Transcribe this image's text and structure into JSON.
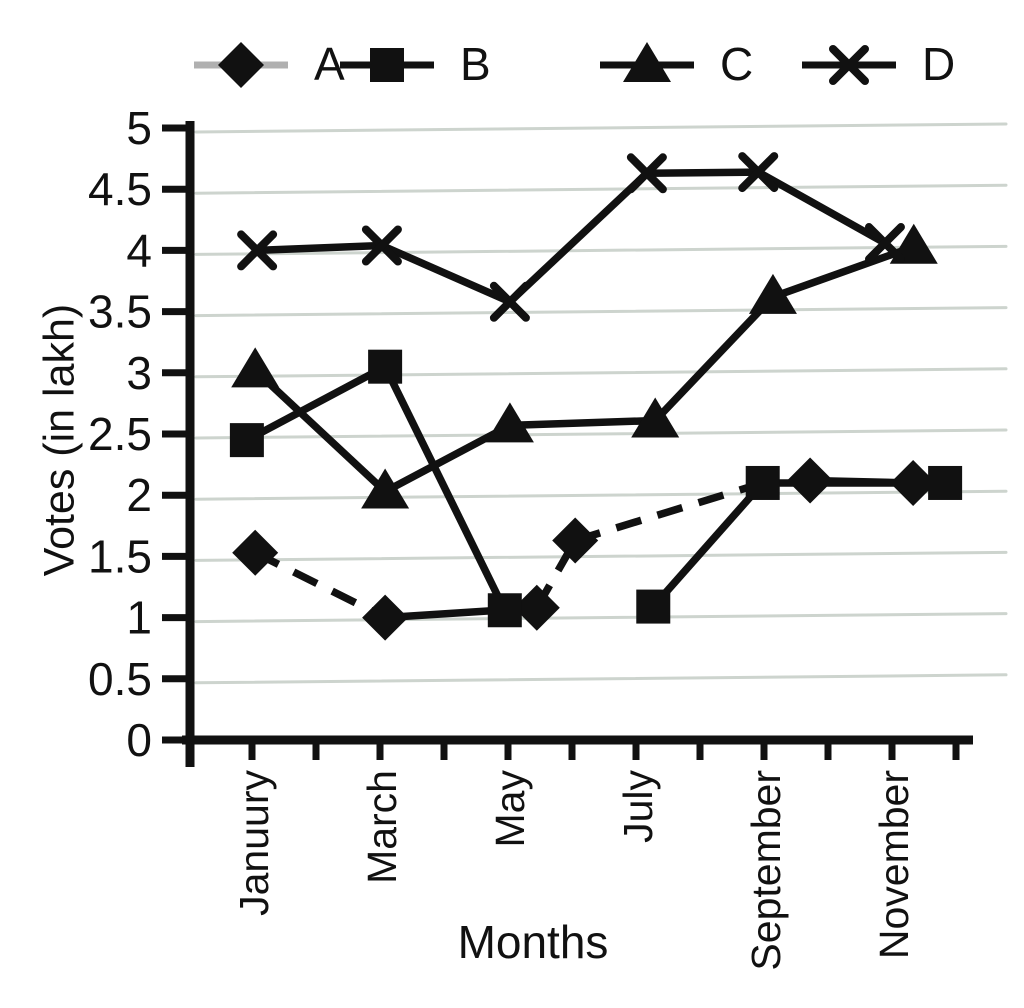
{
  "colors": {
    "ink": "#111111",
    "grid": "#cdd4ce",
    "legend_a_line": "#b0b0b0"
  },
  "chart_data": {
    "type": "line",
    "title": "",
    "xlabel": "Months",
    "ylabel": "Votes (in lakh)",
    "ylim": [
      0,
      5
    ],
    "ytick_step": 0.5,
    "y_tick_labels": [
      "0",
      "0.5",
      "1",
      "1.5",
      "2",
      "2.5",
      "3",
      "3.5",
      "4",
      "4.5",
      "5"
    ],
    "x_ticks_total": 12,
    "x_tick_labels": [
      "Januury",
      "March",
      "May",
      "July",
      "September",
      "November"
    ],
    "grid": "horizontal-light",
    "legend_position": "top",
    "series": [
      {
        "name": "A",
        "marker": "diamond",
        "line_style": "dashed",
        "legend_line_color": "#b0b0b0",
        "points": [
          {
            "x": 0.05,
            "y": 1.53
          },
          {
            "x": 2.08,
            "y": 1.0
          },
          {
            "x": 4.45,
            "y": 1.08
          },
          {
            "x": 5.05,
            "y": 1.63
          },
          {
            "x": 7.98,
            "y": 2.1,
            "marker": false
          },
          {
            "x": 8.72,
            "y": 2.12
          },
          {
            "x": 10.33,
            "y": 2.1
          }
        ],
        "segments": [
          {
            "a": 0,
            "b": 1,
            "style": "dashed"
          },
          {
            "a": 1,
            "b": 2,
            "style": "solid"
          },
          {
            "a": 2,
            "b": 3,
            "style": "dashed"
          },
          {
            "a": 3,
            "b": 4,
            "style": "dashed"
          },
          {
            "a": 5,
            "b": 6,
            "style": "solid"
          }
        ]
      },
      {
        "name": "B",
        "marker": "square",
        "line_style": "solid",
        "legend_line_color": "#111111",
        "points": [
          {
            "x": -0.08,
            "y": 2.45
          },
          {
            "x": 2.08,
            "y": 3.05
          },
          {
            "x": 3.95,
            "y": 1.06
          },
          {
            "x": 6.27,
            "y": 1.09
          },
          {
            "x": 7.98,
            "y": 2.1
          },
          {
            "x": 10.83,
            "y": 2.1
          }
        ],
        "segments": [
          {
            "a": 0,
            "b": 1,
            "style": "solid"
          },
          {
            "a": 1,
            "b": 2,
            "style": "solid"
          },
          {
            "a": 3,
            "b": 4,
            "style": "solid"
          },
          {
            "a": 4,
            "b": 5,
            "style": "solid"
          }
        ]
      },
      {
        "name": "C",
        "marker": "triangle",
        "line_style": "solid",
        "legend_line_color": "#111111",
        "points": [
          {
            "x": 0.05,
            "y": 3.02
          },
          {
            "x": 2.08,
            "y": 2.03
          },
          {
            "x": 4.03,
            "y": 2.57
          },
          {
            "x": 6.3,
            "y": 2.61
          },
          {
            "x": 8.14,
            "y": 3.62
          },
          {
            "x": 10.34,
            "y": 4.03
          }
        ],
        "segments": [
          {
            "a": 0,
            "b": 1,
            "style": "solid"
          },
          {
            "a": 1,
            "b": 2,
            "style": "solid"
          },
          {
            "a": 2,
            "b": 3,
            "style": "solid"
          },
          {
            "a": 3,
            "b": 4,
            "style": "solid"
          },
          {
            "a": 4,
            "b": 5,
            "style": "solid"
          }
        ]
      },
      {
        "name": "D",
        "marker": "x",
        "line_style": "solid",
        "legend_line_color": "#111111",
        "points": [
          {
            "x": 0.08,
            "y": 4.0
          },
          {
            "x": 2.03,
            "y": 4.04
          },
          {
            "x": 4.03,
            "y": 3.58
          },
          {
            "x": 6.17,
            "y": 4.63
          },
          {
            "x": 7.91,
            "y": 4.64
          },
          {
            "x": 9.89,
            "y": 4.06
          }
        ],
        "segments": [
          {
            "a": 0,
            "b": 1,
            "style": "solid"
          },
          {
            "a": 1,
            "b": 2,
            "style": "solid"
          },
          {
            "a": 2,
            "b": 3,
            "style": "solid"
          },
          {
            "a": 3,
            "b": 4,
            "style": "solid"
          },
          {
            "a": 4,
            "b": 5,
            "style": "solid"
          }
        ]
      }
    ]
  }
}
